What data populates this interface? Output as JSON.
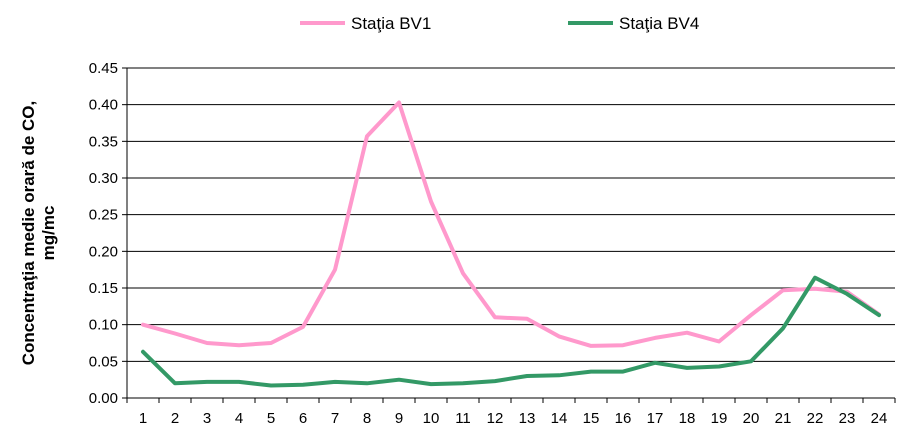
{
  "chart_data": {
    "type": "line",
    "categories": [
      "1",
      "2",
      "3",
      "4",
      "5",
      "6",
      "7",
      "8",
      "9",
      "10",
      "11",
      "12",
      "13",
      "14",
      "15",
      "16",
      "17",
      "18",
      "19",
      "20",
      "21",
      "22",
      "23",
      "24"
    ],
    "series": [
      {
        "name": "Staţia BV1",
        "color": "#ff99cc",
        "values": [
          0.1,
          0.088,
          0.075,
          0.072,
          0.075,
          0.097,
          0.175,
          0.357,
          0.403,
          0.268,
          0.17,
          0.11,
          0.108,
          0.084,
          0.071,
          0.072,
          0.082,
          0.089,
          0.077,
          0.113,
          0.147,
          0.149,
          0.145,
          0.114
        ]
      },
      {
        "name": "Staţia BV4",
        "color": "#339966",
        "values": [
          0.063,
          0.02,
          0.022,
          0.022,
          0.017,
          0.018,
          0.022,
          0.02,
          0.025,
          0.019,
          0.02,
          0.023,
          0.03,
          0.031,
          0.036,
          0.036,
          0.048,
          0.041,
          0.043,
          0.05,
          0.095,
          0.164,
          0.142,
          0.113
        ]
      }
    ],
    "yticks": [
      "0.00",
      "0.05",
      "0.10",
      "0.15",
      "0.20",
      "0.25",
      "0.30",
      "0.35",
      "0.40",
      "0.45"
    ],
    "ylim": [
      0,
      0.45
    ],
    "ylabel_line1": "Concentraţia medie orară de CO,",
    "ylabel_line2": "mg/mc",
    "xlabel": "",
    "grid": "horizontal",
    "legend_position": "top"
  }
}
